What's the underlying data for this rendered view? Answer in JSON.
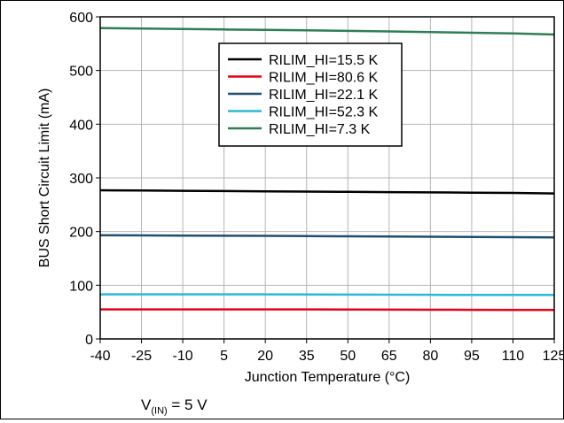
{
  "chart_data": {
    "type": "line",
    "title": "",
    "xlabel": "Junction Temperature (°C)",
    "ylabel": "BUS Short Circuit Limit (mA)",
    "x": [
      -40,
      -25,
      -10,
      5,
      20,
      35,
      50,
      65,
      80,
      95,
      110,
      125
    ],
    "xlim": [
      -40,
      125
    ],
    "ylim": [
      0,
      600
    ],
    "x_ticks": [
      "-40",
      "-25",
      "-10",
      "5",
      "20",
      "35",
      "50",
      "65",
      "80",
      "95",
      "110",
      "125"
    ],
    "y_ticks": [
      "0",
      "100",
      "200",
      "300",
      "400",
      "500",
      "600"
    ],
    "grid": true,
    "legend_position": "top-center",
    "series": [
      {
        "name": "RILIM_HI=15.5 K",
        "color": "#000000",
        "values": [
          277,
          276.5,
          276,
          275.5,
          275,
          274.5,
          274,
          273.5,
          273,
          272.5,
          272,
          271
        ]
      },
      {
        "name": "RILIM_HI=80.6 K",
        "color": "#e2001a",
        "values": [
          55,
          55,
          55,
          55,
          55,
          55,
          54.8,
          54.6,
          54.4,
          54.2,
          54,
          54
        ]
      },
      {
        "name": "RILIM_HI=22.1 K",
        "color": "#1e4f6e",
        "values": [
          193,
          192.8,
          192.5,
          192.2,
          192,
          191.6,
          191.2,
          190.8,
          190.4,
          190,
          189.5,
          189
        ]
      },
      {
        "name": "RILIM_HI=52.3 K",
        "color": "#2bb8d6",
        "values": [
          83,
          83,
          83,
          83,
          83,
          82.8,
          82.6,
          82.4,
          82.2,
          82,
          82,
          82
        ]
      },
      {
        "name": "RILIM_HI=7.3 K",
        "color": "#2f7d55",
        "values": [
          579,
          578.2,
          577.4,
          576.5,
          575.6,
          574.7,
          573.8,
          572.8,
          571.6,
          570.4,
          569,
          567
        ]
      }
    ]
  },
  "caption": {
    "prefix": "V",
    "subscript": "(IN)",
    "suffix": " = 5 V"
  }
}
